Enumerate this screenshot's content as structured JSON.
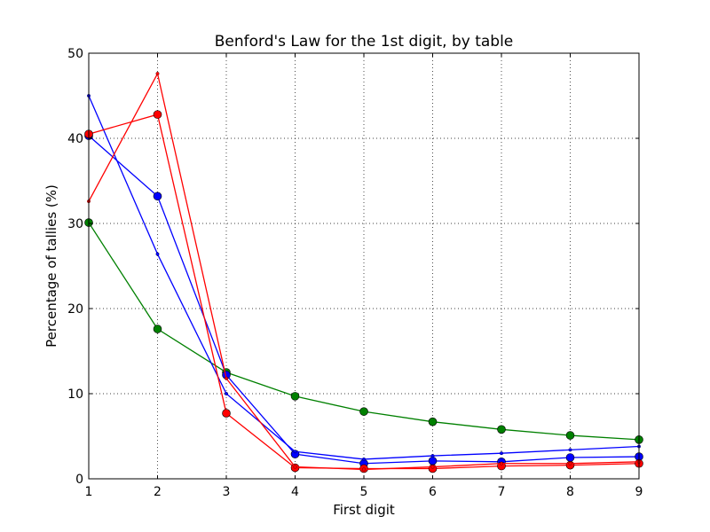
{
  "chart_data": {
    "type": "line",
    "title": "Benford's Law for the 1st digit, by table",
    "xlabel": "First digit",
    "ylabel": "Percentage of tallies (%)",
    "xlim": [
      1,
      9
    ],
    "ylim": [
      0,
      50
    ],
    "xticks": [
      "1",
      "2",
      "3",
      "4",
      "5",
      "6",
      "7",
      "8",
      "9"
    ],
    "yticks": [
      "0",
      "10",
      "20",
      "30",
      "40",
      "50"
    ],
    "grid": true,
    "x": [
      1,
      2,
      3,
      4,
      5,
      6,
      7,
      8,
      9
    ],
    "series": [
      {
        "color": "#008000",
        "marker": "large",
        "values": [
          30.1,
          17.6,
          12.5,
          9.7,
          7.9,
          6.7,
          5.8,
          5.1,
          4.6
        ]
      },
      {
        "color": "#0000ff",
        "marker": "large",
        "values": [
          40.3,
          33.2,
          12.2,
          2.9,
          1.8,
          2.1,
          2.0,
          2.5,
          2.6
        ]
      },
      {
        "color": "#0000ff",
        "marker": "small",
        "values": [
          45.0,
          26.4,
          10.0,
          3.2,
          2.3,
          2.7,
          3.0,
          3.4,
          3.8
        ]
      },
      {
        "color": "#ff0000",
        "marker": "large",
        "values": [
          40.5,
          42.8,
          7.7,
          1.3,
          1.2,
          1.2,
          1.5,
          1.6,
          1.8
        ]
      },
      {
        "color": "#ff0000",
        "marker": "small",
        "values": [
          32.6,
          47.6,
          11.8,
          1.4,
          1.1,
          1.4,
          1.8,
          1.8,
          2.0
        ]
      }
    ]
  }
}
